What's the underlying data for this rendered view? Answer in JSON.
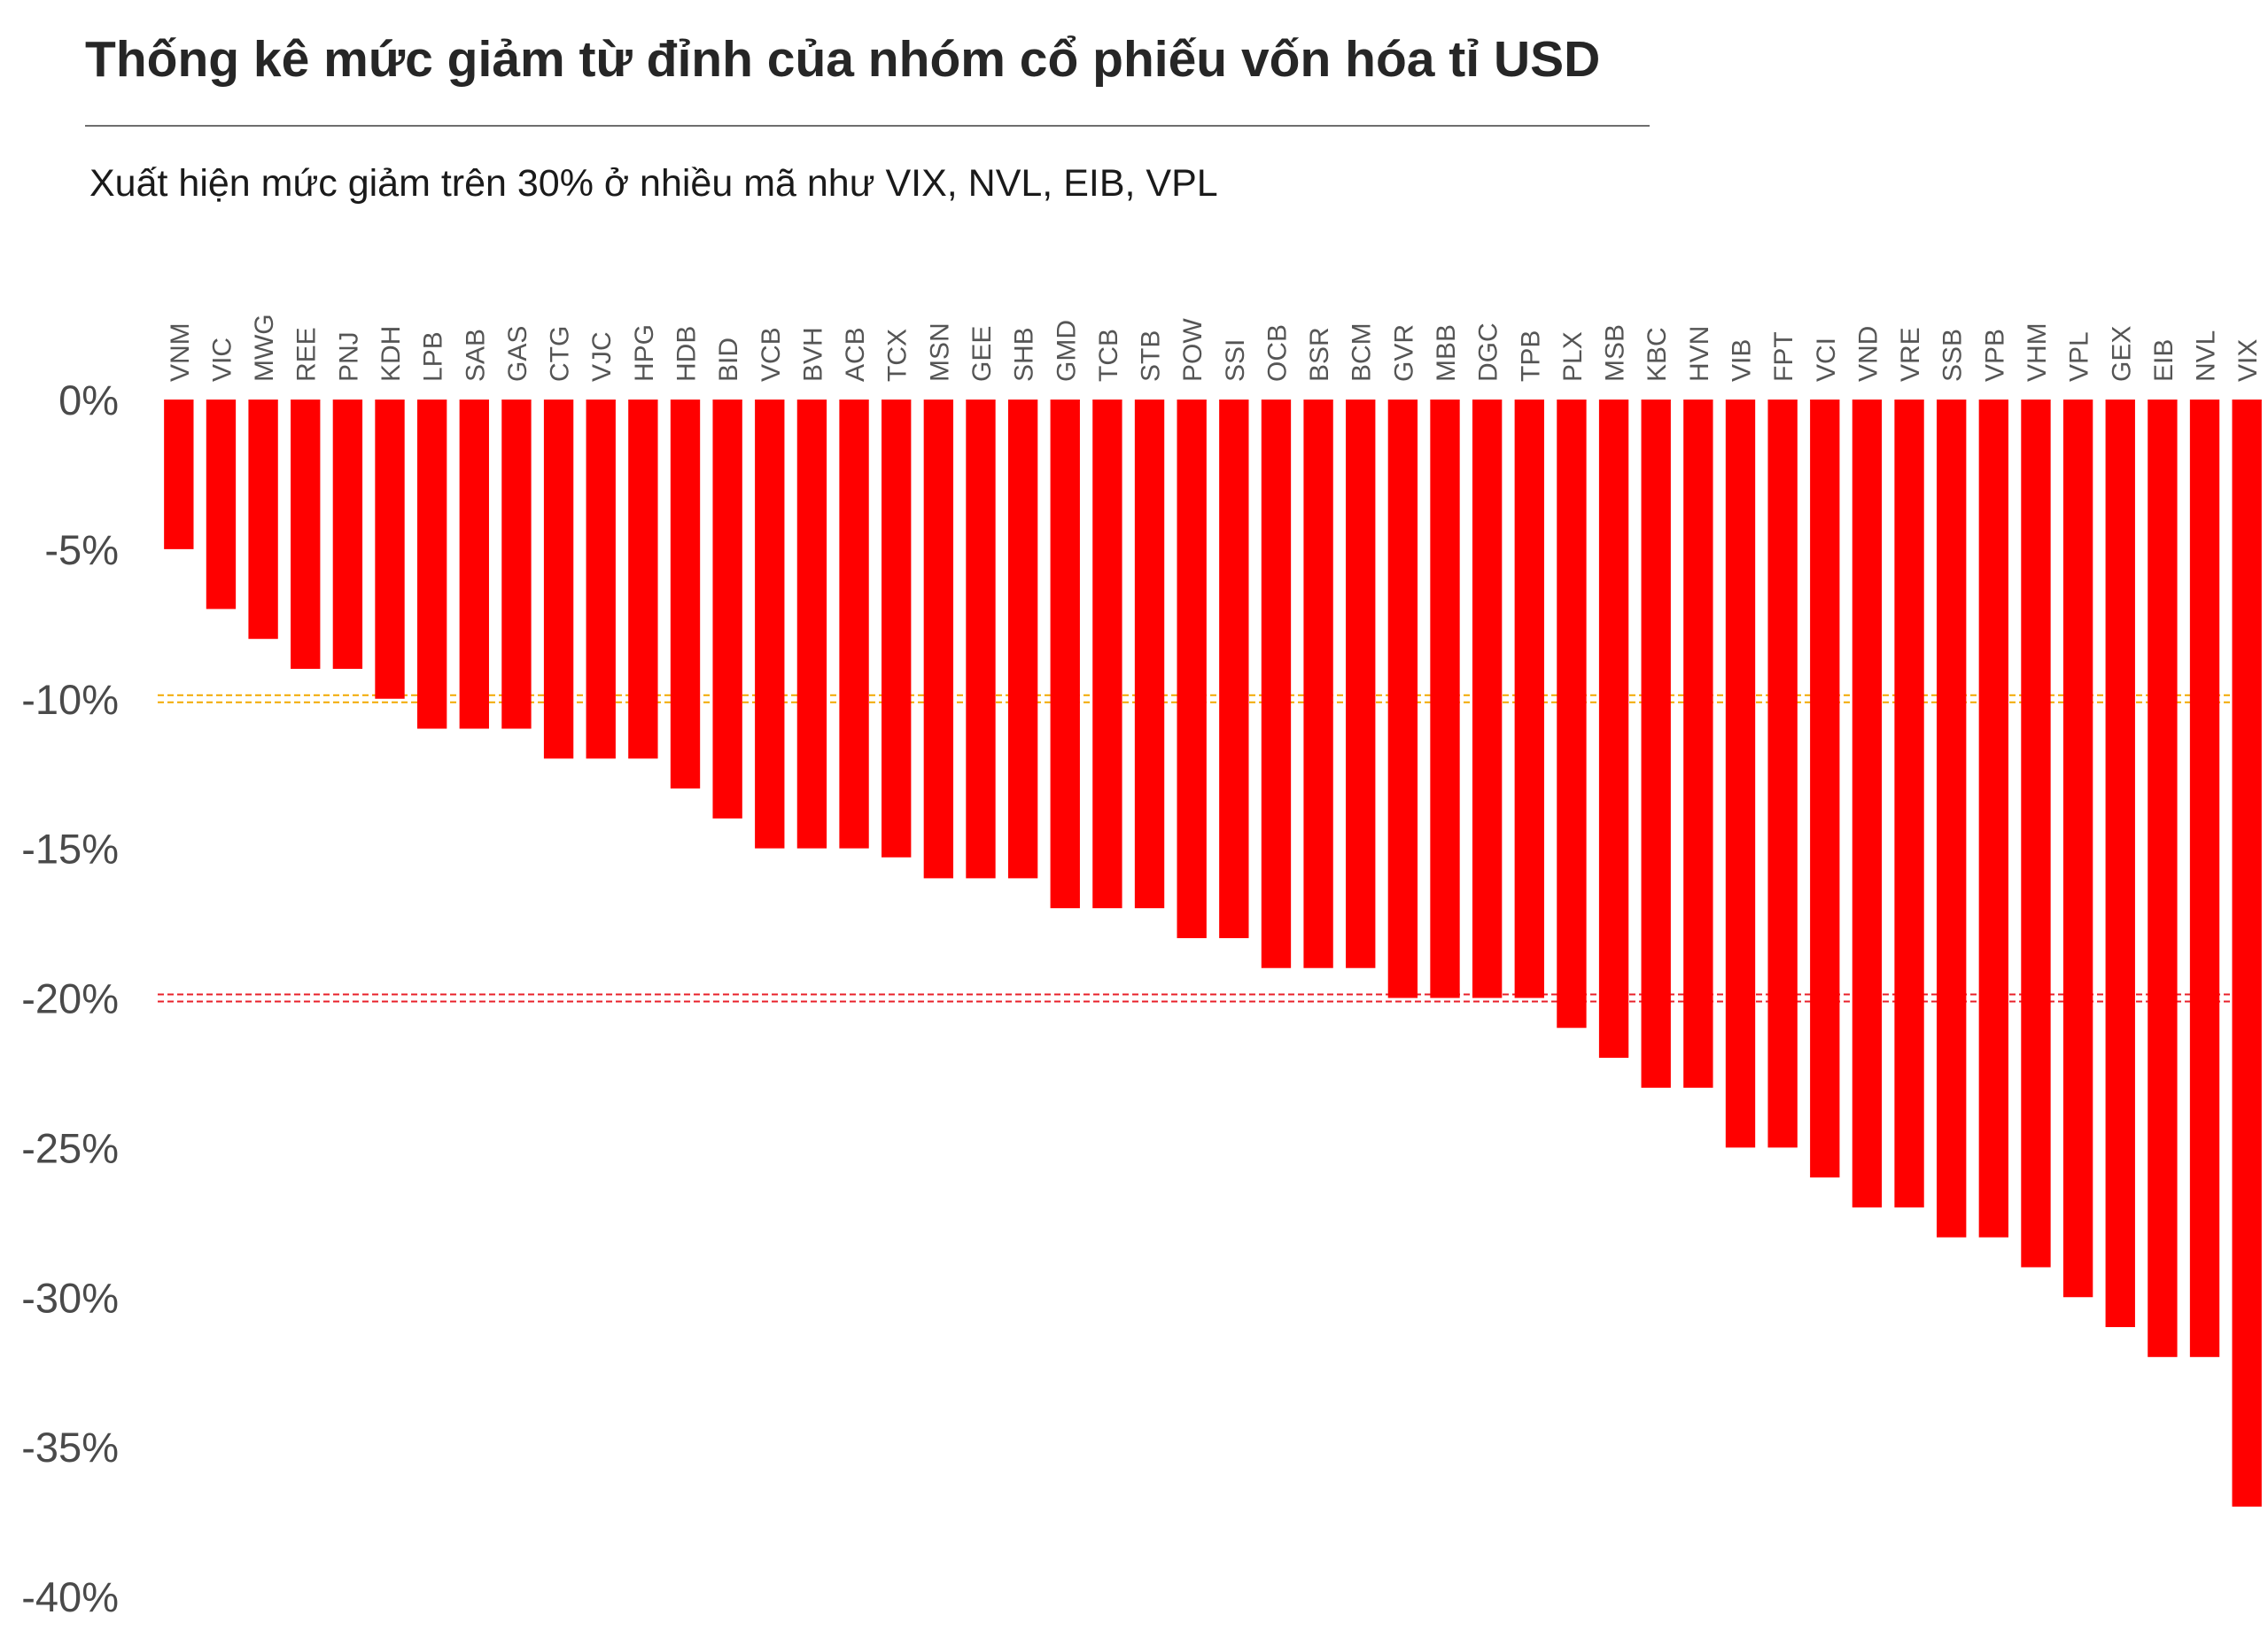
{
  "title": "Thống kê mức giảm từ đỉnh của nhóm cổ phiếu vốn hóa tỉ USD",
  "subtitle": "Xuất hiện mức giảm trên 30% ở nhiều mã như VIX, NVL, EIB, VPL",
  "colors": {
    "bar": "#ff0000",
    "ref_10": "#f2a900",
    "ref_20": "#e8202a"
  },
  "chart_data": {
    "type": "bar",
    "title": "Thống kê mức giảm từ đỉnh của nhóm cổ phiếu vốn hóa tỉ USD",
    "subtitle": "Xuất hiện mức giảm trên 30% ở nhiều mã như VIX, NVL, EIB, VPL",
    "categories": [
      "VNM",
      "VIC",
      "MWG",
      "REE",
      "PNJ",
      "KDH",
      "LPB",
      "SAB",
      "GAS",
      "CTG",
      "VJC",
      "HPG",
      "HDB",
      "BID",
      "VCB",
      "BVH",
      "ACB",
      "TCX",
      "MSN",
      "GEE",
      "SHB",
      "GMD",
      "TCB",
      "STB",
      "POW",
      "SSI",
      "OCB",
      "BSR",
      "BCM",
      "GVR",
      "MBB",
      "DGC",
      "TPB",
      "PLX",
      "MSB",
      "KBC",
      "HVN",
      "VIB",
      "FPT",
      "VCI",
      "VND",
      "VRE",
      "SSB",
      "VPB",
      "VHM",
      "VPL",
      "GEX",
      "EIB",
      "NVL",
      "VIX"
    ],
    "values": [
      -5,
      -7,
      -8,
      -9,
      -9,
      -10,
      -11,
      -11,
      -11,
      -12,
      -12,
      -12,
      -13,
      -14,
      -15,
      -15,
      -15,
      -15.3,
      -16,
      -16,
      -16,
      -17,
      -17,
      -17,
      -18,
      -18,
      -19,
      -19,
      -19,
      -20,
      -20,
      -20,
      -20,
      -21,
      -22,
      -23,
      -23,
      -25,
      -25,
      -26,
      -27,
      -27,
      -28,
      -28,
      -29,
      -30,
      -31,
      -32,
      -32,
      -37
    ],
    "ylim": [
      -40,
      0
    ],
    "yticks": [
      0,
      -5,
      -10,
      -15,
      -20,
      -25,
      -30,
      -35,
      -40
    ],
    "ytick_labels": [
      "0%",
      "-5%",
      "-10%",
      "-15%",
      "-20%",
      "-25%",
      "-30%",
      "-35%",
      "-40%"
    ],
    "x_labels_position": "top",
    "reference_lines": [
      {
        "value": -10,
        "style": "dashed",
        "color": "#f2a900"
      },
      {
        "value": -20,
        "style": "dashed",
        "color": "#e8202a"
      }
    ],
    "grid": false,
    "legend": "none"
  }
}
